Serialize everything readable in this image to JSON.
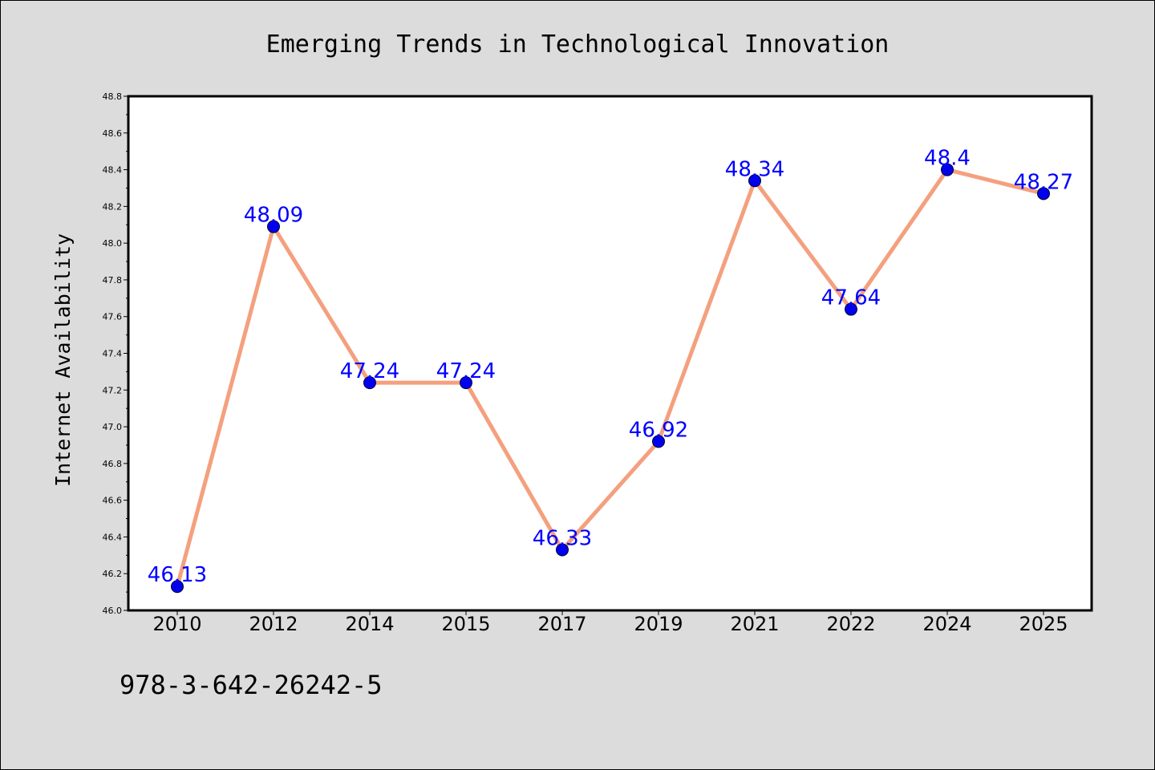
{
  "chart_data": {
    "type": "line",
    "title": "Emerging Trends in Technological Innovation",
    "xlabel": "",
    "ylabel": "Internet Availability",
    "categories": [
      "2010",
      "2012",
      "2014",
      "2015",
      "2017",
      "2019",
      "2021",
      "2022",
      "2024",
      "2025"
    ],
    "series": [
      {
        "values": [
          46.13,
          48.09,
          47.24,
          47.24,
          46.33,
          46.92,
          48.34,
          47.64,
          48.4,
          48.27
        ]
      }
    ],
    "data_labels": [
      "46.13",
      "48.09",
      "47.24",
      "47.24",
      "46.33",
      "46.92",
      "48.34",
      "47.64",
      "48.4",
      "48.27"
    ],
    "ylim": [
      46.0,
      48.8
    ],
    "yticks": [
      "46.0",
      "46.2",
      "46.4",
      "46.6",
      "46.8",
      "47.0",
      "47.2",
      "47.4",
      "47.6",
      "47.8",
      "48.0",
      "48.2",
      "48.4",
      "48.6",
      "48.8"
    ],
    "grid": false,
    "legend": "none",
    "colors": {
      "line": "#f4a07e",
      "marker": "#0000ee",
      "label": "#0000ff",
      "plot_bg": "#ffffff",
      "figure_bg": "#dcdcdc"
    }
  },
  "footer_text": "978-3-642-26242-5"
}
